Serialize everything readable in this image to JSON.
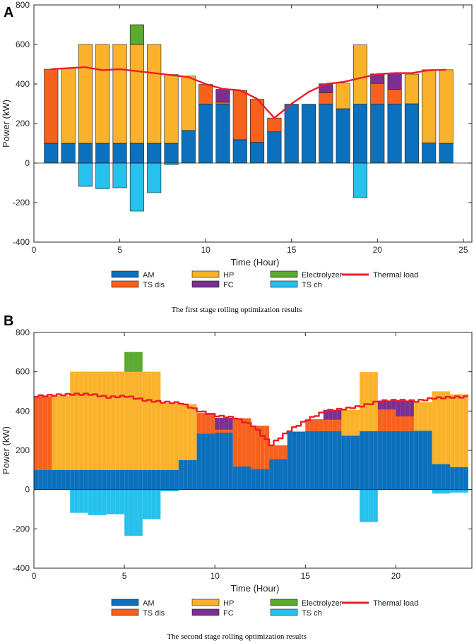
{
  "colors": {
    "AM": "#0b70bd",
    "HP": "#fbb22b",
    "Electrolyzer": "#5aab2e",
    "TS_dis": "#f6611e",
    "FC": "#7c2e93",
    "TS_ch": "#26c1ec",
    "Thermal_load": "#ee1c24"
  },
  "chart_data": [
    {
      "panel_label": "A",
      "type": "bar",
      "stacked": true,
      "x": [
        1,
        2,
        3,
        4,
        5,
        6,
        7,
        8,
        9,
        10,
        11,
        12,
        13,
        14,
        15,
        16,
        17,
        18,
        19,
        20,
        21,
        22,
        23,
        24
      ],
      "series": [
        {
          "key": "AM",
          "name": "AM",
          "values": [
            100,
            100,
            100,
            100,
            100,
            100,
            100,
            100,
            165,
            298,
            298,
            118,
            105,
            158,
            298,
            298,
            298,
            275,
            298,
            298,
            298,
            300,
            102,
            100
          ]
        },
        {
          "key": "HP",
          "name": "HP",
          "values": [
            0,
            380,
            500,
            500,
            500,
            500,
            500,
            348,
            275,
            0,
            0,
            0,
            0,
            0,
            0,
            0,
            0,
            130,
            300,
            0,
            0,
            150,
            370,
            372
          ]
        },
        {
          "key": "Electrolyzer",
          "name": "Electrolyzer",
          "values": [
            0,
            0,
            0,
            0,
            0,
            100,
            0,
            0,
            0,
            0,
            0,
            0,
            0,
            0,
            0,
            0,
            0,
            0,
            0,
            0,
            0,
            0,
            0,
            0
          ]
        },
        {
          "key": "TS_dis",
          "name": "TS dis",
          "values": [
            375,
            0,
            0,
            0,
            0,
            0,
            0,
            0,
            0,
            100,
            10,
            250,
            218,
            70,
            0,
            0,
            58,
            0,
            0,
            105,
            75,
            0,
            0,
            0
          ]
        },
        {
          "key": "FC",
          "name": "FC",
          "values": [
            0,
            0,
            0,
            0,
            0,
            0,
            0,
            0,
            0,
            0,
            65,
            0,
            0,
            0,
            0,
            0,
            45,
            0,
            0,
            48,
            80,
            0,
            0,
            0
          ]
        },
        {
          "key": "TS_ch",
          "name": "TS ch",
          "values": [
            0,
            0,
            -118,
            -130,
            -125,
            -243,
            -150,
            -8,
            0,
            0,
            0,
            0,
            0,
            0,
            0,
            0,
            0,
            0,
            -175,
            0,
            0,
            0,
            0,
            0
          ]
        }
      ],
      "thermal_load": {
        "name": "Thermal load",
        "x": [
          1,
          2,
          3,
          4,
          5,
          6,
          7,
          8,
          9,
          10,
          11,
          12,
          13,
          14,
          15,
          16,
          17,
          18,
          19,
          20,
          21,
          22,
          23,
          24
        ],
        "values": [
          475,
          480,
          485,
          470,
          475,
          465,
          455,
          445,
          435,
          400,
          375,
          368,
          325,
          228,
          300,
          360,
          400,
          410,
          430,
          450,
          455,
          455,
          470,
          472
        ]
      },
      "xlabel": "Time (Hour)",
      "ylabel": "Power (kW)",
      "xlim": [
        0,
        25.5
      ],
      "ylim": [
        -400,
        800
      ],
      "xticks": [
        0,
        5,
        10,
        15,
        20,
        25
      ],
      "yticks": [
        -400,
        -200,
        0,
        200,
        400,
        600,
        800
      ],
      "legend_position": "bottom",
      "caption": "The first stage rolling optimization results"
    },
    {
      "panel_label": "B",
      "type": "bar",
      "stacked": true,
      "granularity_minutes": 15,
      "step_hours": [
        0,
        1,
        2,
        3,
        4,
        5,
        6,
        7,
        8,
        9,
        10,
        11,
        12,
        13,
        14,
        15,
        16,
        17,
        18,
        19,
        20,
        21,
        22,
        23
      ],
      "series": [
        {
          "key": "AM",
          "name": "AM",
          "values": [
            100,
            100,
            100,
            100,
            100,
            100,
            100,
            100,
            150,
            285,
            290,
            118,
            105,
            155,
            295,
            298,
            298,
            275,
            298,
            298,
            298,
            300,
            130,
            115
          ]
        },
        {
          "key": "HP",
          "name": "HP",
          "values": [
            0,
            378,
            500,
            500,
            500,
            500,
            500,
            340,
            285,
            0,
            0,
            0,
            0,
            0,
            0,
            0,
            0,
            130,
            300,
            0,
            0,
            145,
            370,
            370
          ]
        },
        {
          "key": "Electrolyzer",
          "name": "Electrolyzer",
          "values": [
            0,
            0,
            0,
            0,
            0,
            100,
            0,
            0,
            0,
            0,
            0,
            0,
            0,
            0,
            0,
            0,
            0,
            0,
            0,
            0,
            0,
            0,
            0,
            0
          ]
        },
        {
          "key": "TS_dis",
          "name": "TS dis",
          "values": [
            375,
            0,
            0,
            0,
            0,
            0,
            0,
            0,
            0,
            105,
            15,
            245,
            220,
            70,
            0,
            60,
            58,
            0,
            0,
            110,
            75,
            0,
            0,
            0
          ]
        },
        {
          "key": "FC",
          "name": "FC",
          "values": [
            0,
            0,
            0,
            0,
            0,
            0,
            0,
            0,
            0,
            0,
            60,
            0,
            0,
            0,
            0,
            0,
            50,
            0,
            0,
            45,
            80,
            0,
            0,
            0
          ]
        },
        {
          "key": "TS_ch",
          "name": "TS ch",
          "values": [
            0,
            0,
            -118,
            -130,
            -125,
            -235,
            -150,
            -8,
            0,
            0,
            0,
            0,
            0,
            0,
            0,
            0,
            0,
            0,
            -165,
            0,
            0,
            0,
            -20,
            -15
          ]
        }
      ],
      "thermal_load": {
        "name": "Thermal load",
        "x": [
          0,
          1,
          2,
          3,
          4,
          5,
          6,
          7,
          8,
          9,
          10,
          11,
          12,
          13,
          14,
          15,
          16,
          17,
          18,
          19,
          20,
          21,
          22,
          23,
          24
        ],
        "values": [
          475,
          480,
          485,
          485,
          470,
          475,
          455,
          445,
          440,
          400,
          375,
          365,
          325,
          228,
          300,
          355,
          400,
          410,
          425,
          450,
          455,
          450,
          465,
          470,
          472
        ]
      },
      "xlabel": "Time (Hour)",
      "ylabel": "Power (kW)",
      "xlim": [
        0,
        24.2
      ],
      "ylim": [
        -400,
        800
      ],
      "xticks": [
        0,
        5,
        10,
        15,
        20
      ],
      "yticks": [
        -400,
        -200,
        0,
        200,
        400,
        600,
        800
      ],
      "legend_position": "bottom",
      "caption": "The second stage rolling optimization results"
    }
  ]
}
